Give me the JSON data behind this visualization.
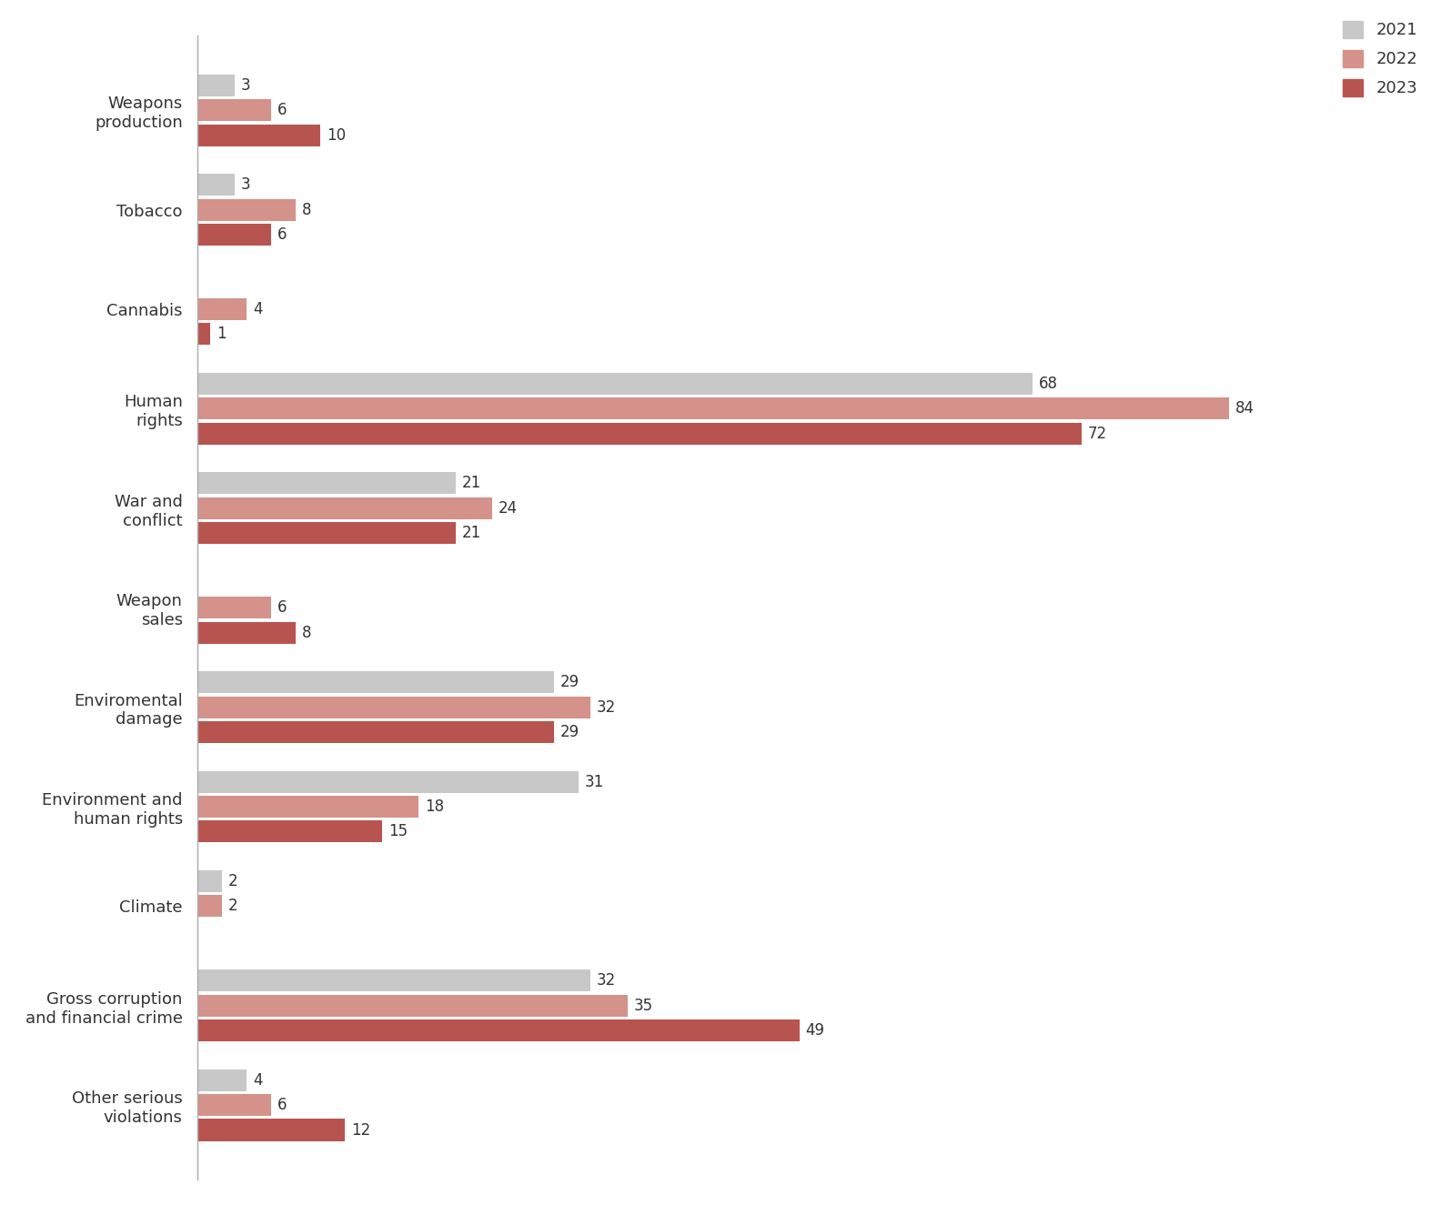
{
  "categories": [
    "Weapons\nproduction",
    "Tobacco",
    "Cannabis",
    "Human\nrights",
    "War and\nconflict",
    "Weapon\nsales",
    "Enviromental\ndamage",
    "Environment and\nhuman rights",
    "Climate",
    "Gross corruption\nand financial crime",
    "Other serious\nviolations"
  ],
  "values_2021": [
    3,
    3,
    0,
    68,
    21,
    0,
    29,
    31,
    2,
    32,
    4
  ],
  "values_2022": [
    6,
    8,
    4,
    84,
    24,
    6,
    32,
    18,
    2,
    35,
    6
  ],
  "values_2023": [
    10,
    6,
    1,
    72,
    21,
    8,
    29,
    15,
    0,
    49,
    12
  ],
  "color_2021": "#c8c8c8",
  "color_2022": "#d4928a",
  "color_2023": "#b85450",
  "background_color": "#ffffff",
  "text_color": "#333333",
  "bar_height": 0.22,
  "bar_gap": 0.03,
  "figsize": [
    15.95,
    13.25
  ],
  "dpi": 100,
  "legend_labels": [
    "2021",
    "2022",
    "2023"
  ],
  "font_size_labels": 13,
  "font_size_values": 12,
  "font_size_legend": 13,
  "xlim": [
    0,
    100
  ]
}
